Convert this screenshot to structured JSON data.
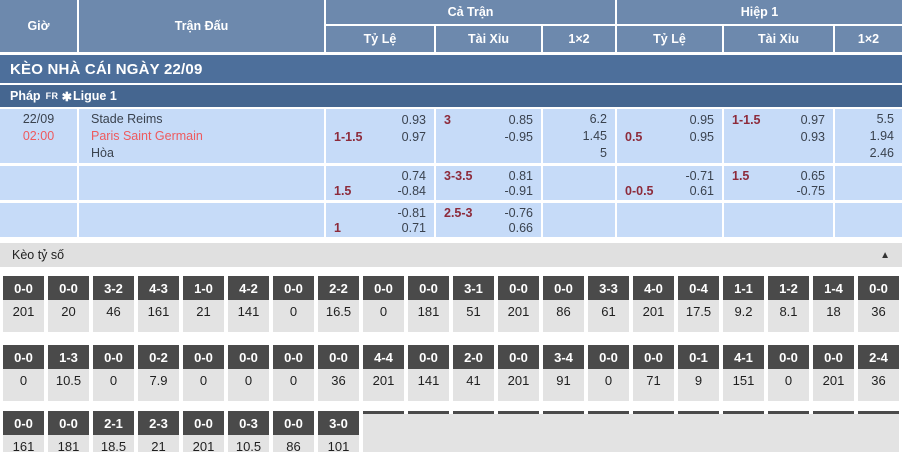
{
  "colors": {
    "header_blue": "#6d89ad",
    "title_bar_blue": "#4d6f9b",
    "league_bar_blue": "#456690",
    "odds_cell_blue": "#c6dbf8",
    "handicap_maroon": "#8d2b3b",
    "highlight_red": "#ee5a5e",
    "score_box_dark": "#4a4a4a",
    "score_cell_gray": "#e3e3e3"
  },
  "header": {
    "col_time": "Giờ",
    "col_match": "Trận Đấu",
    "group_full": "Cả Trận",
    "group_half": "Hiệp 1",
    "sub_full": [
      "Tỷ Lệ",
      "Tài Xỉu",
      "1×2"
    ],
    "sub_half": [
      "Tỷ Lệ",
      "Tài Xỉu",
      "1×2"
    ]
  },
  "section_title": "KÈO NHÀ CÁI NGÀY 22/09",
  "league": {
    "country": "Pháp",
    "code": "FR",
    "flag_icon": "✱",
    "name": "Ligue 1"
  },
  "match": {
    "date": "22/09",
    "time": "02:00",
    "home": "Stade Reims",
    "away": "Paris Saint Germain",
    "draw": "Hòa"
  },
  "odds_rows": [
    {
      "ft_rate": [
        {
          "l": "",
          "r": "0.93"
        },
        {
          "l": "1-1.5",
          "r": "0.97"
        }
      ],
      "ft_ou": [
        {
          "l": "3",
          "r": "0.85"
        },
        {
          "l": "",
          "r": "-0.95"
        }
      ],
      "ft_1x2": [
        {
          "l": "",
          "r": "6.2"
        },
        {
          "l": "",
          "r": "1.45"
        },
        {
          "l": "",
          "r": "5"
        }
      ],
      "h1_rate": [
        {
          "l": "",
          "r": "0.95"
        },
        {
          "l": "0.5",
          "r": "0.95"
        }
      ],
      "h1_ou": [
        {
          "l": "1-1.5",
          "r": "0.97"
        },
        {
          "l": "",
          "r": "0.93"
        }
      ],
      "h1_1x2": [
        {
          "l": "",
          "r": "5.5"
        },
        {
          "l": "",
          "r": "1.94"
        },
        {
          "l": "",
          "r": "2.46"
        }
      ]
    },
    {
      "ft_rate": [
        {
          "l": "",
          "r": "0.74"
        },
        {
          "l": "1.5",
          "r": "-0.84"
        }
      ],
      "ft_ou": [
        {
          "l": "3-3.5",
          "r": "0.81"
        },
        {
          "l": "",
          "r": "-0.91"
        }
      ],
      "ft_1x2": [],
      "h1_rate": [
        {
          "l": "",
          "r": "-0.71"
        },
        {
          "l": "0-0.5",
          "r": "0.61"
        }
      ],
      "h1_ou": [
        {
          "l": "1.5",
          "r": "0.65"
        },
        {
          "l": "",
          "r": "-0.75"
        }
      ],
      "h1_1x2": []
    },
    {
      "ft_rate": [
        {
          "l": "",
          "r": "-0.81"
        },
        {
          "l": "1",
          "r": "0.71"
        }
      ],
      "ft_ou": [
        {
          "l": "2.5-3",
          "r": "-0.76"
        },
        {
          "l": "",
          "r": "0.66"
        }
      ],
      "ft_1x2": [],
      "h1_rate": [],
      "h1_ou": [],
      "h1_1x2": []
    }
  ],
  "score_section": {
    "title": "Kèo tỷ số",
    "collapse_icon": "▲",
    "rows": [
      {
        "cells": [
          {
            "score": "0-0",
            "odds": "201"
          },
          {
            "score": "0-0",
            "odds": "20"
          },
          {
            "score": "3-2",
            "odds": "46"
          },
          {
            "score": "4-3",
            "odds": "161"
          },
          {
            "score": "1-0",
            "odds": "21"
          },
          {
            "score": "4-2",
            "odds": "141"
          },
          {
            "score": "0-0",
            "odds": "0"
          },
          {
            "score": "2-2",
            "odds": "16.5"
          },
          {
            "score": "0-0",
            "odds": "0"
          },
          {
            "score": "0-0",
            "odds": "181"
          },
          {
            "score": "3-1",
            "odds": "51"
          },
          {
            "score": "0-0",
            "odds": "201"
          },
          {
            "score": "0-0",
            "odds": "86"
          },
          {
            "score": "3-3",
            "odds": "61"
          },
          {
            "score": "4-0",
            "odds": "201"
          },
          {
            "score": "0-4",
            "odds": "17.5"
          },
          {
            "score": "1-1",
            "odds": "9.2"
          },
          {
            "score": "1-2",
            "odds": "8.1"
          },
          {
            "score": "1-4",
            "odds": "18"
          },
          {
            "score": "0-0",
            "odds": "36"
          }
        ]
      },
      {
        "cells": [
          {
            "score": "0-0",
            "odds": "0"
          },
          {
            "score": "1-3",
            "odds": "10.5"
          },
          {
            "score": "0-0",
            "odds": "0"
          },
          {
            "score": "0-2",
            "odds": "7.9"
          },
          {
            "score": "0-0",
            "odds": "0"
          },
          {
            "score": "0-0",
            "odds": "0"
          },
          {
            "score": "0-0",
            "odds": "0"
          },
          {
            "score": "0-0",
            "odds": "36"
          },
          {
            "score": "4-4",
            "odds": "201"
          },
          {
            "score": "0-0",
            "odds": "141"
          },
          {
            "score": "2-0",
            "odds": "41"
          },
          {
            "score": "0-0",
            "odds": "201"
          },
          {
            "score": "3-4",
            "odds": "91"
          },
          {
            "score": "0-0",
            "odds": "0"
          },
          {
            "score": "0-0",
            "odds": "71"
          },
          {
            "score": "0-1",
            "odds": "9"
          },
          {
            "score": "4-1",
            "odds": "151"
          },
          {
            "score": "0-0",
            "odds": "0"
          },
          {
            "score": "0-0",
            "odds": "201"
          },
          {
            "score": "2-4",
            "odds": "36"
          }
        ]
      },
      {
        "cells": [
          {
            "score": "0-0",
            "odds": "161"
          },
          {
            "score": "0-0",
            "odds": "181"
          },
          {
            "score": "2-1",
            "odds": "18.5"
          },
          {
            "score": "2-3",
            "odds": "21"
          },
          {
            "score": "0-0",
            "odds": "201"
          },
          {
            "score": "0-3",
            "odds": "10.5"
          },
          {
            "score": "0-0",
            "odds": "86"
          },
          {
            "score": "3-0",
            "odds": "101"
          }
        ],
        "has_filler": true
      }
    ]
  }
}
